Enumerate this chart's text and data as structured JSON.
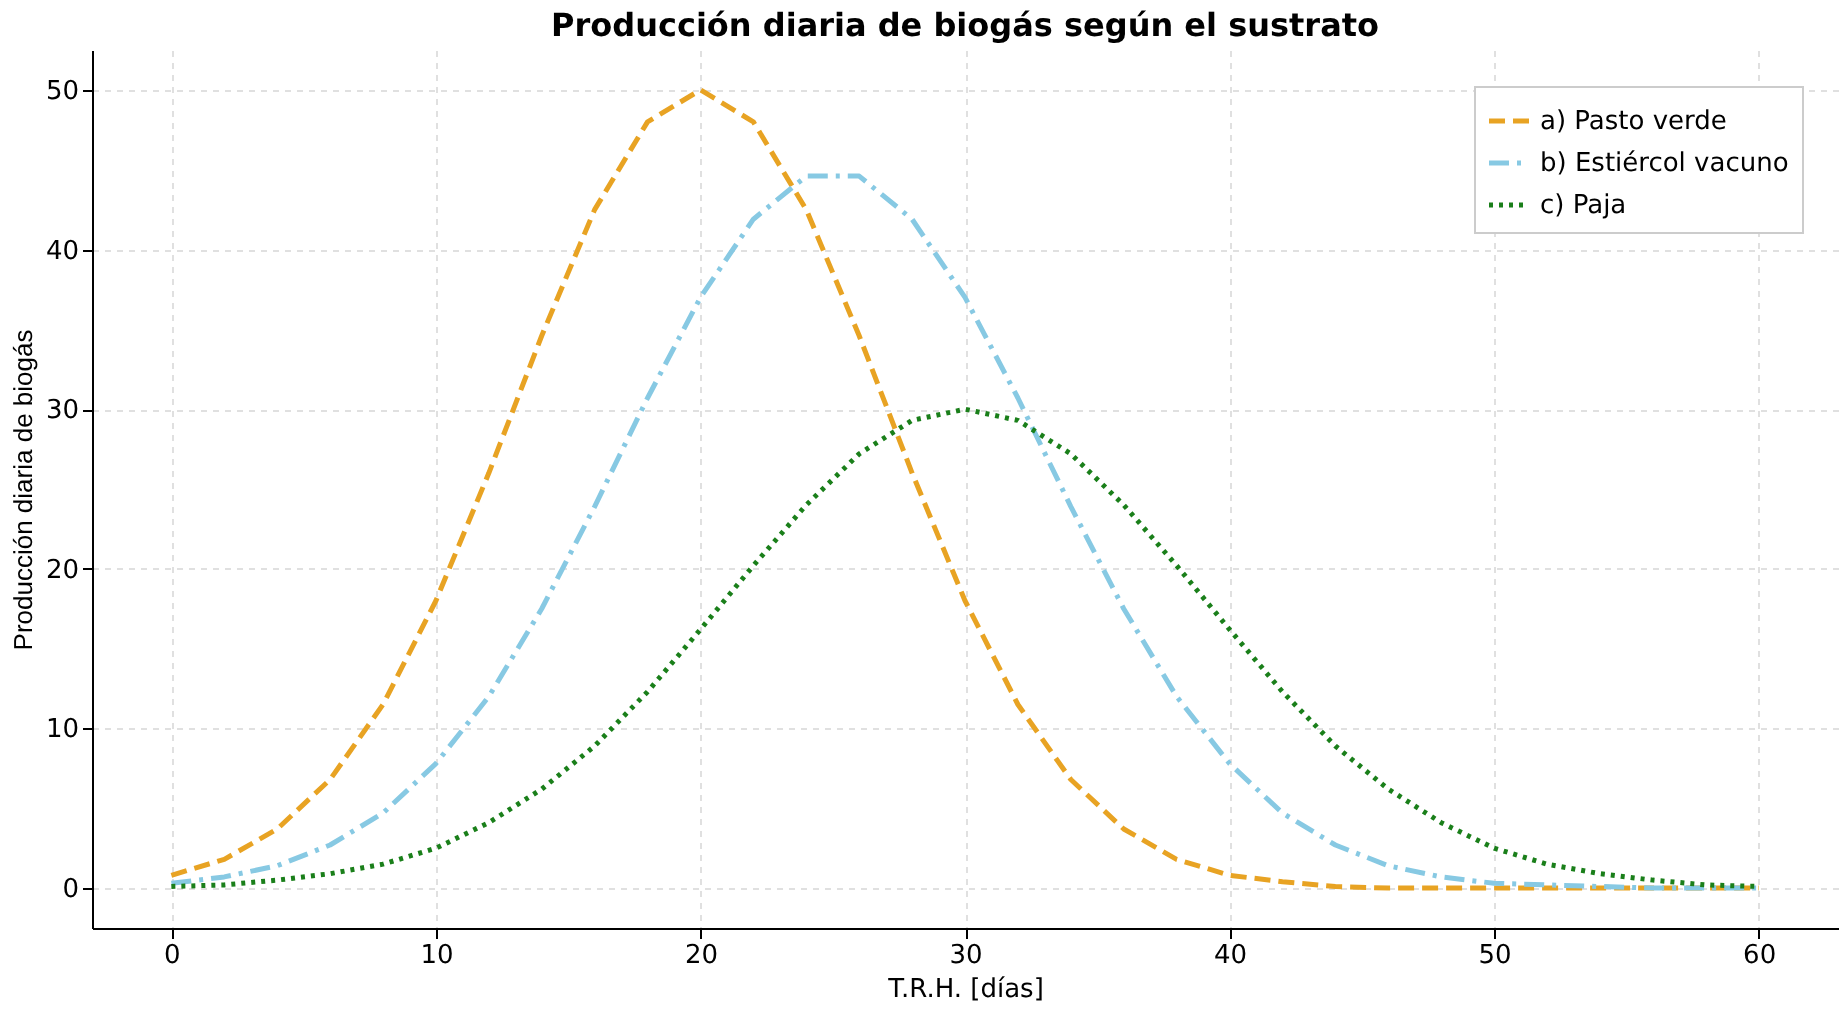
{
  "chart_data": {
    "type": "line",
    "title": "Producción diaria de biogás según el sustrato",
    "xlabel": "T.R.H. [días]",
    "ylabel": "Producción diaria de biogás",
    "x": [
      0,
      2,
      4,
      6,
      8,
      10,
      12,
      14,
      16,
      18,
      20,
      22,
      24,
      26,
      28,
      30,
      32,
      34,
      36,
      38,
      40,
      42,
      44,
      46,
      48,
      50,
      52,
      54,
      56,
      58,
      60
    ],
    "series": [
      {
        "name": "a) Pasto verde",
        "color": "#e8a323",
        "line_style": "dashed",
        "values": [
          0.8,
          1.8,
          3.7,
          6.8,
          11.5,
          18.0,
          26.0,
          34.6,
          42.5,
          48.0,
          50.0,
          48.0,
          42.5,
          34.6,
          26.0,
          18.0,
          11.5,
          6.8,
          3.7,
          1.8,
          0.8,
          0.4,
          0.1,
          0,
          0,
          0,
          0,
          0,
          0,
          0,
          0
        ]
      },
      {
        "name": "b) Estiércol vacuno",
        "color": "#87c9e3",
        "line_style": "dashdot",
        "values": [
          0.3,
          0.7,
          1.4,
          2.7,
          4.7,
          7.8,
          12.0,
          17.5,
          23.9,
          30.7,
          37.0,
          41.9,
          44.6,
          44.6,
          41.9,
          37.0,
          30.7,
          23.9,
          17.5,
          12.0,
          7.8,
          4.7,
          2.7,
          1.4,
          0.7,
          0.3,
          0.2,
          0.1,
          0,
          0,
          0
        ]
      },
      {
        "name": "c) Paja",
        "color": "#1a7f1a",
        "line_style": "dotted",
        "values": [
          0.1,
          0.2,
          0.5,
          0.9,
          1.5,
          2.5,
          4.1,
          6.2,
          8.9,
          12.3,
          16.2,
          20.2,
          24.0,
          27.2,
          29.3,
          30.0,
          29.3,
          27.2,
          24.0,
          20.2,
          16.2,
          12.3,
          8.9,
          6.2,
          4.1,
          2.5,
          1.5,
          0.9,
          0.5,
          0.2,
          0.1
        ]
      }
    ],
    "xlim": [
      -3,
      63
    ],
    "xticks": [
      0,
      10,
      20,
      30,
      40,
      50,
      60
    ],
    "ylim": [
      -2.5,
      52.5
    ],
    "yticks": [
      0,
      10,
      20,
      30,
      40,
      50
    ],
    "grid": true,
    "legend": "top right"
  }
}
